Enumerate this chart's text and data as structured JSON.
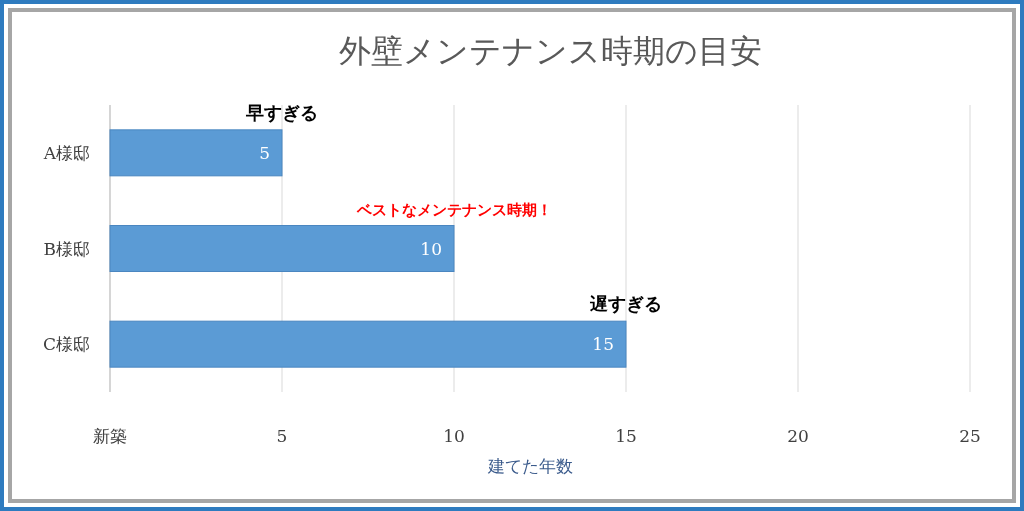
{
  "chart_data": {
    "type": "bar",
    "orientation": "horizontal",
    "title": "外壁メンテナンス時期の目安",
    "categories": [
      "A様邸",
      "B様邸",
      "C様邸"
    ],
    "values": [
      5,
      10,
      15
    ],
    "color": "#5b9bd5",
    "data_labels": true,
    "xlim": [
      0,
      25
    ],
    "xticks": [
      {
        "value": 0,
        "label": "新築"
      },
      5,
      10,
      15,
      20,
      25
    ],
    "xlabel": "建てた年数",
    "grid": "x",
    "annotations": [
      {
        "text": "早すぎる",
        "x": 5,
        "y": "A様邸"
      },
      {
        "text": "ベストなメンテナンス時期！",
        "x": 10,
        "y": "B様邸"
      },
      {
        "text": "遅すぎる",
        "x": 15,
        "y": "C様邸"
      }
    ]
  }
}
